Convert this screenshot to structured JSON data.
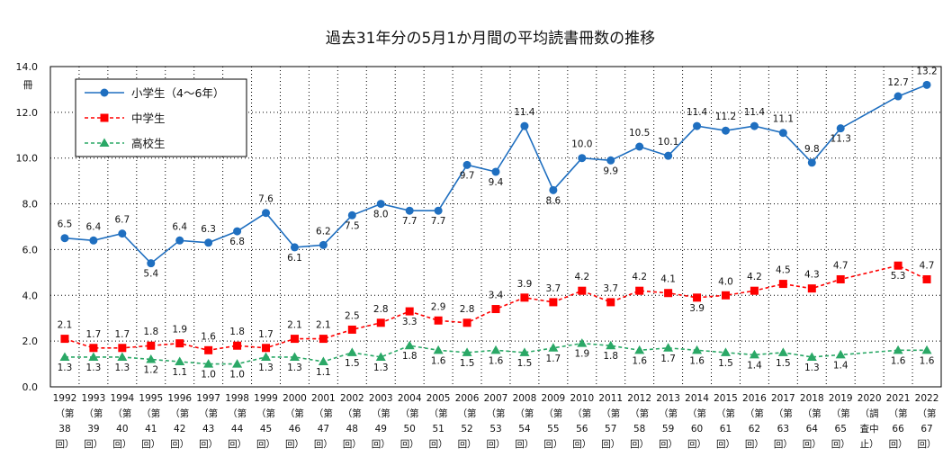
{
  "chart_data": {
    "type": "line",
    "title": "過去31年分の5月1か月間の平均読書冊数の推移",
    "ylabel": "冊",
    "ylim": [
      0,
      14
    ],
    "yticks": [
      "0.0",
      "2.0",
      "4.0",
      "6.0",
      "8.0",
      "10.0",
      "12.0",
      "14.0"
    ],
    "grid": true,
    "legend_position": "top-left",
    "x_labels": [
      [
        "1992",
        "（第",
        "38",
        "回）"
      ],
      [
        "1993",
        "（第",
        "39",
        "回）"
      ],
      [
        "1994",
        "（第",
        "40",
        "回）"
      ],
      [
        "1995",
        "（第",
        "41",
        "回）"
      ],
      [
        "1996",
        "（第",
        "42",
        "回）"
      ],
      [
        "1997",
        "（第",
        "43",
        "回）"
      ],
      [
        "1998",
        "（第",
        "44",
        "回）"
      ],
      [
        "1999",
        "（第",
        "45",
        "回）"
      ],
      [
        "2000",
        "（第",
        "46",
        "回）"
      ],
      [
        "2001",
        "（第",
        "47",
        "回）"
      ],
      [
        "2002",
        "（第",
        "48",
        "回）"
      ],
      [
        "2003",
        "（第",
        "49",
        "回）"
      ],
      [
        "2004",
        "（第",
        "50",
        "回）"
      ],
      [
        "2005",
        "（第",
        "51",
        "回）"
      ],
      [
        "2006",
        "（第",
        "52",
        "回）"
      ],
      [
        "2007",
        "（第",
        "53",
        "回）"
      ],
      [
        "2008",
        "（第",
        "54",
        "回）"
      ],
      [
        "2009",
        "（第",
        "55",
        "回）"
      ],
      [
        "2010",
        "（第",
        "56",
        "回）"
      ],
      [
        "2011",
        "（第",
        "57",
        "回）"
      ],
      [
        "2012",
        "（第",
        "58",
        "回）"
      ],
      [
        "2013",
        "（第",
        "59",
        "回）"
      ],
      [
        "2014",
        "（第",
        "60",
        "回）"
      ],
      [
        "2015",
        "（第",
        "61",
        "回）"
      ],
      [
        "2016",
        "（第",
        "62",
        "回）"
      ],
      [
        "2017",
        "（第",
        "63",
        "回）"
      ],
      [
        "2018",
        "（第",
        "64",
        "回）"
      ],
      [
        "2019",
        "（第",
        "65",
        "回）"
      ],
      [
        "2020",
        "（調",
        "査中",
        "止）"
      ],
      [
        "2021",
        "（第",
        "66",
        "回）"
      ],
      [
        "2022",
        "（第",
        "67",
        "回）"
      ]
    ],
    "series": [
      {
        "name": "小学生（4～6年）",
        "color": "#1f6fc0",
        "marker": "circle",
        "line": "solid",
        "values": [
          6.5,
          6.4,
          6.7,
          5.4,
          6.4,
          6.3,
          6.8,
          7.6,
          6.1,
          6.2,
          7.5,
          8.0,
          7.7,
          7.7,
          9.7,
          9.4,
          11.4,
          8.6,
          10.0,
          9.9,
          10.5,
          10.1,
          11.4,
          11.2,
          11.4,
          11.1,
          9.8,
          11.3,
          null,
          12.7,
          13.2
        ]
      },
      {
        "name": "中学生",
        "color": "#ff0000",
        "marker": "square",
        "line": "dashed",
        "values": [
          2.1,
          1.7,
          1.7,
          1.8,
          1.9,
          1.6,
          1.8,
          1.7,
          2.1,
          2.1,
          2.5,
          2.8,
          3.3,
          2.9,
          2.8,
          3.4,
          3.9,
          3.7,
          4.2,
          3.7,
          4.2,
          4.1,
          3.9,
          4.0,
          4.2,
          4.5,
          4.3,
          4.7,
          null,
          5.3,
          4.7
        ]
      },
      {
        "name": "高校生",
        "color": "#2aa866",
        "marker": "triangle",
        "line": "dashed",
        "values": [
          1.3,
          1.3,
          1.3,
          1.2,
          1.1,
          1.0,
          1.0,
          1.3,
          1.3,
          1.1,
          1.5,
          1.3,
          1.8,
          1.6,
          1.5,
          1.6,
          1.5,
          1.7,
          1.9,
          1.8,
          1.6,
          1.7,
          1.6,
          1.5,
          1.4,
          1.5,
          1.3,
          1.4,
          null,
          1.6,
          1.6
        ]
      }
    ]
  }
}
